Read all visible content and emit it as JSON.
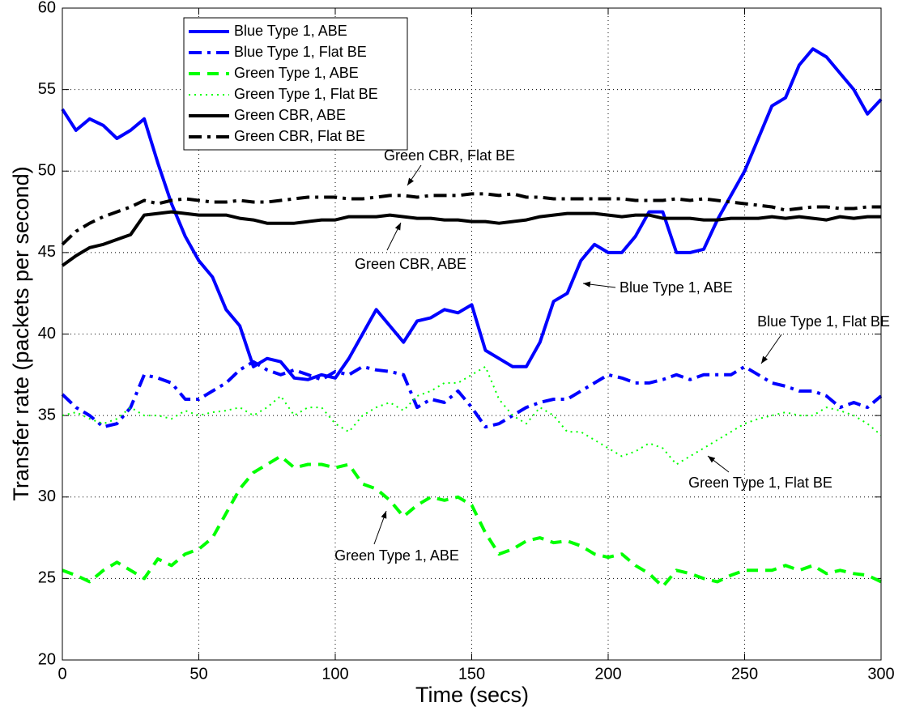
{
  "chart_data": {
    "type": "line",
    "xlabel": "Time (secs)",
    "ylabel": "Transfer rate (packets per second)",
    "x": [
      0,
      5,
      10,
      15,
      20,
      25,
      30,
      35,
      40,
      45,
      50,
      55,
      60,
      65,
      70,
      75,
      80,
      85,
      90,
      95,
      100,
      105,
      110,
      115,
      120,
      125,
      130,
      135,
      140,
      145,
      150,
      155,
      160,
      165,
      170,
      175,
      180,
      185,
      190,
      195,
      200,
      205,
      210,
      215,
      220,
      225,
      230,
      235,
      240,
      245,
      250,
      255,
      260,
      265,
      270,
      275,
      280,
      285,
      290,
      295,
      300
    ],
    "xlim": [
      0,
      300
    ],
    "xticks": [
      0,
      50,
      100,
      150,
      200,
      250,
      300
    ],
    "ylim": [
      20,
      60
    ],
    "yticks": [
      20,
      25,
      30,
      35,
      40,
      45,
      50,
      55,
      60
    ],
    "grid": true,
    "legend": "upper left",
    "series": [
      {
        "name": "Blue Type 1, ABE",
        "color": "#0000ff",
        "style": "solid",
        "values": [
          53.8,
          52.5,
          53.2,
          52.8,
          52.0,
          52.5,
          53.2,
          50.5,
          48,
          46,
          44.5,
          43.5,
          41.5,
          40.5,
          38,
          38.5,
          38.3,
          37.3,
          37.2,
          37.5,
          37.3,
          38.5,
          40,
          41.5,
          40.5,
          39.5,
          40.8,
          41,
          41.5,
          41.3,
          41.8,
          39,
          38.5,
          38,
          38,
          39.5,
          42,
          42.5,
          44.5,
          45.5,
          45,
          45,
          46,
          47.5,
          47.5,
          45,
          45,
          45.2,
          47,
          48.5,
          50,
          52,
          54,
          54.5,
          56.5,
          57.5,
          57,
          56,
          55,
          53.5,
          54.4
        ]
      },
      {
        "name": "Blue Type 1, Flat BE",
        "color": "#0000ff",
        "style": "dashdot",
        "values": [
          36.3,
          35.5,
          35,
          34.3,
          34.5,
          35.5,
          37.5,
          37.3,
          37,
          36,
          36,
          36.5,
          37,
          37.8,
          38.3,
          37.8,
          37.5,
          37.8,
          37.5,
          37.2,
          37.7,
          37.5,
          38,
          37.8,
          37.7,
          37.5,
          35.5,
          36,
          35.8,
          36.5,
          35.5,
          34.3,
          34.5,
          35,
          35.5,
          35.8,
          36,
          36,
          36.5,
          37,
          37.5,
          37.3,
          37,
          37,
          37.2,
          37.5,
          37.2,
          37.5,
          37.5,
          37.5,
          38,
          37.5,
          37,
          36.8,
          36.5,
          36.5,
          36.2,
          35.5,
          35.8,
          35.5,
          36.2
        ]
      },
      {
        "name": "Green Type 1, ABE",
        "color": "#00ff00",
        "style": "dashed",
        "values": [
          25.5,
          25.2,
          24.8,
          25.5,
          26,
          25.5,
          25,
          26.2,
          25.8,
          26.5,
          26.8,
          27.5,
          29,
          30.5,
          31.5,
          32,
          32.5,
          31.8,
          32,
          32,
          31.8,
          32,
          30.8,
          30.5,
          29.8,
          28.8,
          29.5,
          30,
          29.8,
          30,
          29.5,
          27.8,
          26.5,
          26.8,
          27.3,
          27.5,
          27.2,
          27.3,
          27,
          26.5,
          26.3,
          26.5,
          25.8,
          25.3,
          24.5,
          25.5,
          25.3,
          25,
          24.8,
          25.2,
          25.5,
          25.5,
          25.5,
          25.8,
          25.5,
          25.8,
          25.3,
          25.5,
          25.3,
          25.2,
          24.8
        ]
      },
      {
        "name": "Green Type 1, Flat BE",
        "color": "#00ff00",
        "style": "dotted",
        "values": [
          35,
          35.2,
          34.8,
          34.5,
          34.8,
          35.5,
          35,
          35,
          34.8,
          35.3,
          35,
          35.2,
          35.3,
          35.5,
          35,
          35.5,
          36.2,
          35,
          35.5,
          35.5,
          34.5,
          34,
          35,
          35.5,
          35.8,
          35.3,
          36.2,
          36.5,
          37,
          37,
          37.5,
          38,
          36,
          35,
          34.5,
          35.5,
          35,
          34,
          34,
          33.5,
          33,
          32.5,
          32.8,
          33.3,
          33,
          32,
          32.5,
          33,
          33.5,
          34,
          34.5,
          34.8,
          35,
          35.2,
          35,
          35,
          35.5,
          35.3,
          35,
          34.5,
          33.8
        ]
      },
      {
        "name": "Green CBR, ABE",
        "color": "#000000",
        "style": "solid",
        "values": [
          44.2,
          44.8,
          45.3,
          45.5,
          45.8,
          46.1,
          47.3,
          47.4,
          47.5,
          47.4,
          47.3,
          47.3,
          47.3,
          47.1,
          47,
          46.8,
          46.8,
          46.8,
          46.9,
          47,
          47,
          47.2,
          47.2,
          47.2,
          47.3,
          47.2,
          47.1,
          47.1,
          47,
          47,
          46.9,
          46.9,
          46.8,
          46.9,
          47,
          47.2,
          47.3,
          47.4,
          47.4,
          47.4,
          47.3,
          47.2,
          47.3,
          47.3,
          47.1,
          47.1,
          47.1,
          47,
          47,
          47.1,
          47.1,
          47.1,
          47.2,
          47.1,
          47.2,
          47.1,
          47,
          47.2,
          47.1,
          47.2,
          47.2
        ]
      },
      {
        "name": "Green CBR, Flat BE",
        "color": "#000000",
        "style": "dashdot",
        "values": [
          45.5,
          46.3,
          46.8,
          47.2,
          47.5,
          47.8,
          48.2,
          48,
          48.2,
          48.3,
          48.2,
          48.1,
          48.1,
          48.2,
          48.1,
          48.1,
          48.2,
          48.3,
          48.4,
          48.4,
          48.4,
          48.3,
          48.3,
          48.4,
          48.5,
          48.5,
          48.4,
          48.5,
          48.5,
          48.5,
          48.6,
          48.6,
          48.5,
          48.6,
          48.4,
          48.4,
          48.3,
          48.3,
          48.3,
          48.3,
          48.3,
          48.3,
          48.2,
          48.2,
          48.2,
          48.3,
          48.2,
          48.3,
          48.2,
          48.1,
          48,
          47.9,
          47.8,
          47.6,
          47.7,
          47.8,
          47.8,
          47.7,
          47.7,
          47.8,
          47.8
        ]
      }
    ],
    "annotations": [
      "Green CBR, Flat BE",
      "Green CBR, ABE",
      "Blue Type 1, ABE",
      "Blue Type 1, Flat BE",
      "Green Type 1, Flat BE",
      "Green Type 1, ABE"
    ]
  }
}
